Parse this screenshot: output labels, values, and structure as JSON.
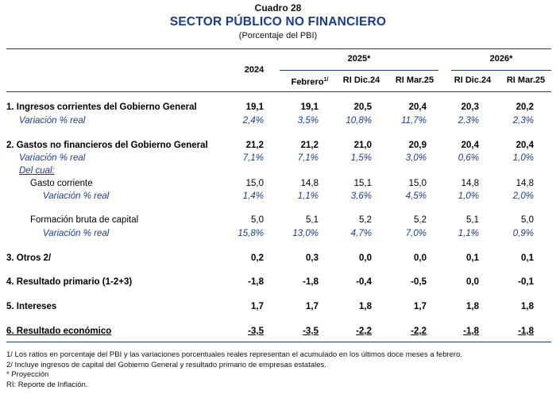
{
  "header": {
    "cuadro": "Cuadro 28",
    "title": "SECTOR PÚBLICO NO FINANCIERO",
    "subtitle": "(Porcentaje del PBI)"
  },
  "columns": {
    "year_2024": "2024",
    "group_2025": "2025*",
    "group_2026": "2026*",
    "c_feb": "Febrero",
    "c_feb_sup": "1/",
    "c_ri_dic24_a": "RI Dic.24",
    "c_ri_mar25_a": "RI Mar.25",
    "c_ri_dic24_b": "RI Dic.24",
    "c_ri_mar25_b": "RI Mar.25"
  },
  "rows": [
    {
      "label": "1. Ingresos corrientes del Gobierno General",
      "values": [
        "19,1",
        "19,1",
        "20,5",
        "20,4",
        "20,3",
        "20,2"
      ]
    },
    {
      "label": "Variación % real",
      "values": [
        "2,4%",
        "3,5%",
        "10,8%",
        "11,7%",
        "2,3%",
        "2,3%"
      ]
    },
    {
      "label": "2. Gastos no financieros del Gobierno General",
      "values": [
        "21,2",
        "21,2",
        "21,0",
        "20,9",
        "20,4",
        "20,4"
      ]
    },
    {
      "label": "Variación % real",
      "values": [
        "7,1%",
        "7,1%",
        "1,5%",
        "3,0%",
        "0,6%",
        "1,0%"
      ]
    },
    {
      "label": "Del cual:",
      "values": []
    },
    {
      "label": "Gasto corriente",
      "values": [
        "15,0",
        "14,8",
        "15,1",
        "15,0",
        "14,8",
        "14,8"
      ]
    },
    {
      "label": "Variación % real",
      "values": [
        "1,4%",
        "1,1%",
        "3,6%",
        "4,5%",
        "1,0%",
        "2,0%"
      ]
    },
    {
      "label": "Formación bruta de capital",
      "values": [
        "5,0",
        "5,1",
        "5,2",
        "5,2",
        "5,1",
        "5,0"
      ]
    },
    {
      "label": "Variación % real",
      "values": [
        "15,8%",
        "13,0%",
        "4,7%",
        "7,0%",
        "1,1%",
        "0,9%"
      ]
    },
    {
      "label": "3. Otros 2/",
      "values": [
        "0,2",
        "0,3",
        "0,0",
        "0,0",
        "0,1",
        "0,1"
      ]
    },
    {
      "label": "4. Resultado primario (1-2+3)",
      "values": [
        "-1,8",
        "-1,8",
        "-0,4",
        "-0,5",
        "0,0",
        "-0,1"
      ]
    },
    {
      "label": "5. Intereses",
      "values": [
        "1,7",
        "1,7",
        "1,8",
        "1,7",
        "1,8",
        "1,8"
      ]
    },
    {
      "label": "6. Resultado económico",
      "values": [
        "-3,5",
        "-3,5",
        "-2,2",
        "-2,2",
        "-1,8",
        "-1,8"
      ]
    }
  ],
  "notes": [
    "1/ Los ratios en porcentaje del PBI y las variaciones porcentuales reales representan el acumulado en los últimos doce meses a febrero.",
    "2/ Incluye ingresos de capital del Gobierno General y resultado primario de empresas estatales.",
    "* Proyección",
    "RI: Reporte de Inflación."
  ]
}
